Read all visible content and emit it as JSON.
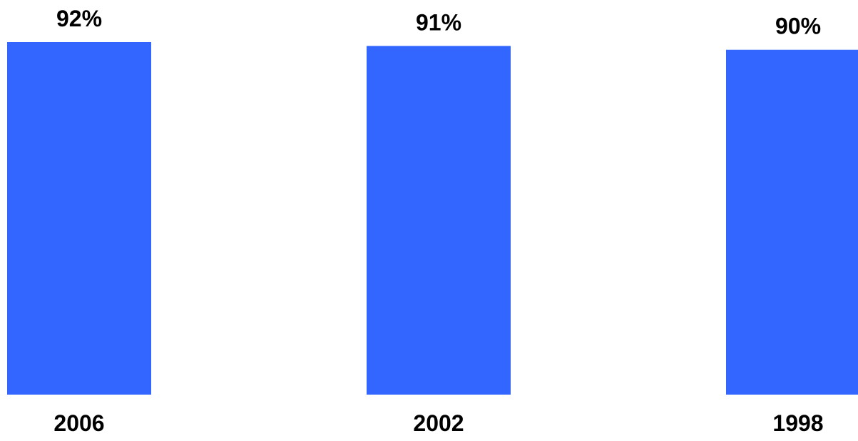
{
  "chart_data": {
    "type": "bar",
    "categories": [
      "2006",
      "2002",
      "1998"
    ],
    "values": [
      92,
      91,
      90
    ],
    "value_labels": [
      "92%",
      "91%",
      "90%"
    ],
    "unit": "%",
    "title": "",
    "xlabel": "",
    "ylabel": "",
    "ylim": [
      0,
      92
    ],
    "grid": false,
    "legend": "none",
    "colors": {
      "bar": "#3366FF",
      "text": "#000000",
      "background": "#FFFFFF"
    }
  }
}
